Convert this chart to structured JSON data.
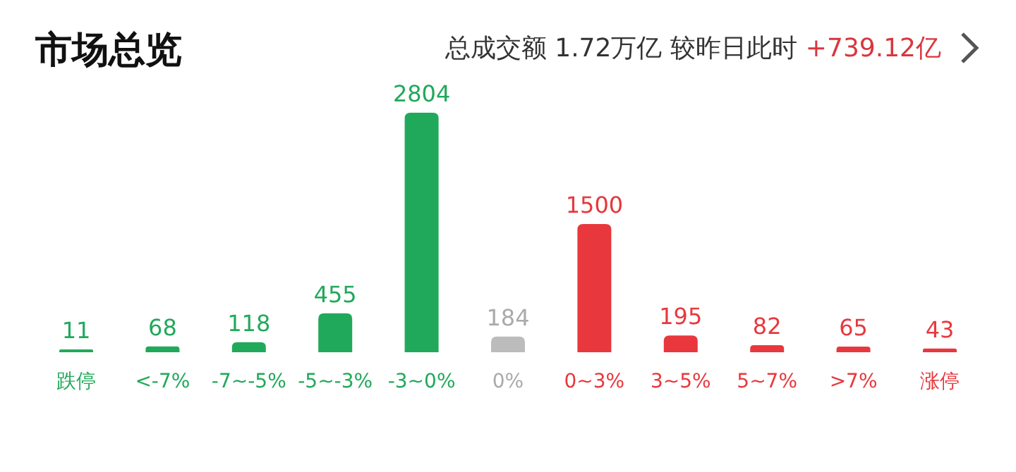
{
  "chart_data": {
    "type": "bar",
    "title": "市场总览",
    "subtitle": "总成交额 1.72万亿 较昨日此时",
    "annotations": [
      "+739.12亿"
    ],
    "categories": [
      "跌停",
      "<-7%",
      "-7~-5%",
      "-5~-3%",
      "-3~0%",
      "0%",
      "0~3%",
      "3~5%",
      "5~7%",
      ">7%",
      "涨停"
    ],
    "values": [
      11,
      68,
      118,
      455,
      2804,
      184,
      1500,
      195,
      82,
      65,
      43
    ],
    "colors": [
      "#21a95b",
      "#21a95b",
      "#21a95b",
      "#21a95b",
      "#21a95b",
      "#bcbcbc",
      "#e8383d",
      "#e8383d",
      "#e8383d",
      "#e8383d",
      "#e8383d"
    ],
    "data_labels": true
  }
}
